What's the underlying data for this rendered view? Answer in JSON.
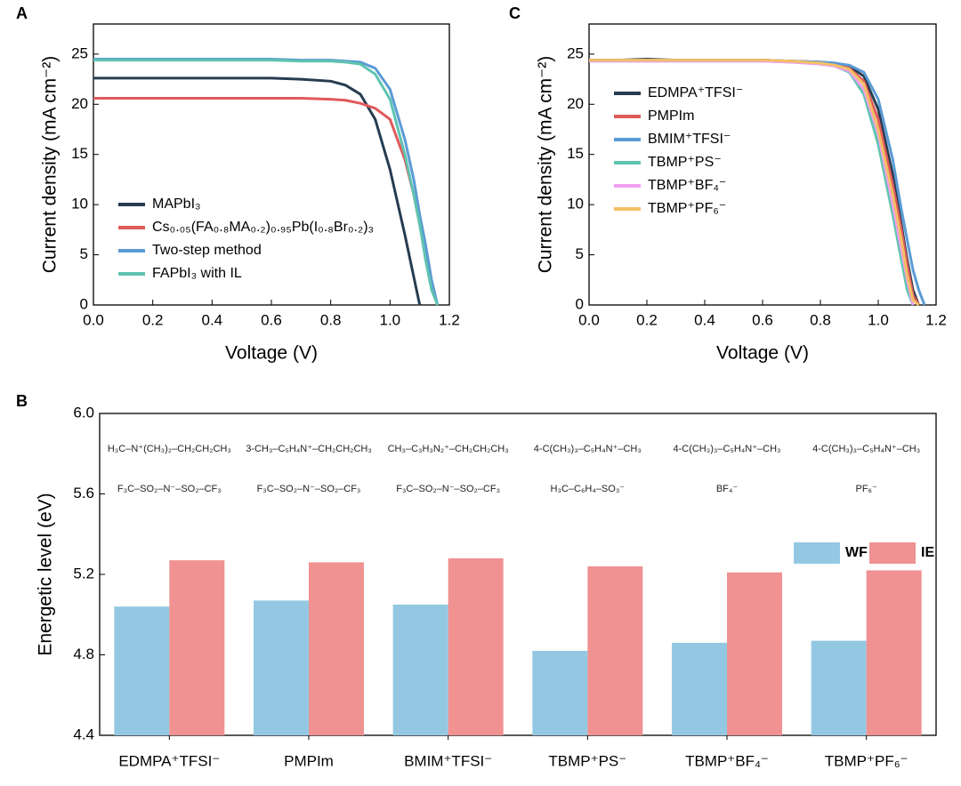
{
  "chart_data": [
    {
      "type": "line",
      "panel": "A",
      "xlabel": "Voltage (V)",
      "ylabel": "Current density (mA cm⁻²)",
      "x": [
        0,
        0.1,
        0.2,
        0.3,
        0.4,
        0.5,
        0.6,
        0.7,
        0.8,
        0.85,
        0.9,
        0.95,
        1.0,
        1.05,
        1.08,
        1.1,
        1.12,
        1.14,
        1.16
      ],
      "series": [
        {
          "name": "MAPbI₃",
          "color": "#263c50",
          "values": [
            22.6,
            22.6,
            22.6,
            22.6,
            22.6,
            22.6,
            22.6,
            22.5,
            22.3,
            21.9,
            21.0,
            18.5,
            13.5,
            7.0,
            2.8,
            0,
            null,
            null,
            null
          ]
        },
        {
          "name": "Cs₀.₀₅(FA₀.₈MA₀.₂)₀.₉₅Pb(I₀.₈Br₀.₂)₃",
          "color": "#e05a5a",
          "values": [
            20.6,
            20.6,
            20.6,
            20.6,
            20.6,
            20.6,
            20.6,
            20.6,
            20.5,
            20.4,
            20.1,
            19.6,
            18.5,
            14.5,
            11.0,
            8.0,
            5.0,
            2.0,
            0
          ]
        },
        {
          "name": "Two-step method",
          "color": "#5b9bd5",
          "values": [
            24.5,
            24.5,
            24.5,
            24.5,
            24.5,
            24.5,
            24.5,
            24.4,
            24.4,
            24.3,
            24.2,
            23.6,
            21.5,
            16.5,
            12.5,
            9.0,
            6.0,
            2.5,
            0
          ]
        },
        {
          "name": "FAPbI₃ with IL",
          "color": "#5ec4b0",
          "values": [
            24.4,
            24.4,
            24.4,
            24.4,
            24.4,
            24.4,
            24.4,
            24.3,
            24.3,
            24.2,
            24.0,
            23.0,
            20.5,
            15.0,
            11.0,
            8.0,
            4.5,
            1.5,
            0
          ]
        }
      ],
      "xlim": [
        0,
        1.2
      ],
      "xticks": [
        {
          "value": 0,
          "label": "0.0"
        },
        0.2,
        0.4,
        0.6,
        0.8,
        {
          "value": 1,
          "label": "1.0"
        },
        1.2
      ],
      "ylim": [
        0,
        28
      ],
      "yticks": [
        0,
        5,
        10,
        15,
        20,
        25
      ],
      "legend_position": "lower left"
    },
    {
      "type": "line",
      "panel": "C",
      "xlabel": "Voltage (V)",
      "ylabel": "Current density (mA cm⁻²)",
      "x": [
        0,
        0.1,
        0.2,
        0.3,
        0.4,
        0.5,
        0.6,
        0.7,
        0.8,
        0.85,
        0.9,
        0.95,
        1.0,
        1.05,
        1.08,
        1.1,
        1.12,
        1.14,
        1.16
      ],
      "series": [
        {
          "name": "EDMPA⁺TFSI⁻",
          "color": "#263c50",
          "values": [
            24.4,
            24.4,
            24.5,
            24.4,
            24.4,
            24.4,
            24.4,
            24.3,
            24.2,
            24.1,
            23.8,
            22.8,
            19.5,
            13.0,
            8.0,
            4.5,
            1.5,
            0,
            null
          ]
        },
        {
          "name": "PMPIm",
          "color": "#e05a5a",
          "values": [
            24.4,
            24.4,
            24.4,
            24.4,
            24.4,
            24.4,
            24.4,
            24.3,
            24.2,
            24.0,
            23.6,
            22.3,
            18.5,
            12.0,
            7.5,
            4.0,
            1.0,
            0,
            null
          ]
        },
        {
          "name": "BMIM⁺TFSI⁻",
          "color": "#5b9bd5",
          "values": [
            24.4,
            24.4,
            24.4,
            24.4,
            24.4,
            24.4,
            24.4,
            24.3,
            24.2,
            24.1,
            23.9,
            23.2,
            20.5,
            14.5,
            9.5,
            6.5,
            3.5,
            1.5,
            0
          ]
        },
        {
          "name": "TBMP⁺PS⁻",
          "color": "#5ec4b0",
          "values": [
            24.3,
            24.3,
            24.3,
            24.3,
            24.3,
            24.3,
            24.3,
            24.2,
            24.0,
            23.8,
            23.2,
            21.0,
            16.0,
            9.0,
            4.5,
            1.5,
            0,
            null,
            null
          ]
        },
        {
          "name": "TBMP⁺BF₄⁻",
          "color": "#f29ef0",
          "values": [
            24.3,
            24.3,
            24.3,
            24.3,
            24.3,
            24.3,
            24.3,
            24.2,
            24.0,
            23.8,
            23.3,
            21.5,
            17.0,
            10.0,
            5.5,
            2.5,
            0,
            null,
            null
          ]
        },
        {
          "name": "TBMP⁺PF₆⁻",
          "color": "#f3c063",
          "values": [
            24.4,
            24.4,
            24.4,
            24.4,
            24.4,
            24.4,
            24.4,
            24.3,
            24.1,
            23.9,
            23.5,
            22.0,
            17.5,
            11.0,
            6.5,
            3.0,
            0.5,
            0,
            null
          ]
        }
      ],
      "xlim": [
        0,
        1.2
      ],
      "xticks": [
        {
          "value": 0,
          "label": "0.0"
        },
        0.2,
        0.4,
        0.6,
        0.8,
        {
          "value": 1,
          "label": "1.0"
        },
        1.2
      ],
      "ylim": [
        0,
        28
      ],
      "yticks": [
        0,
        5,
        10,
        15,
        20,
        25
      ],
      "legend_position": "upper left"
    },
    {
      "type": "bar",
      "panel": "B",
      "ylabel": "Energetic level (eV)",
      "categories": [
        "EDMPA⁺TFSI⁻",
        "PMPIm",
        "BMIM⁺TFSI⁻",
        "TBMP⁺PS⁻",
        "TBMP⁺BF₄⁻",
        "TBMP⁺PF₆⁻"
      ],
      "series": [
        {
          "name": "WF",
          "color": "#94c8e2",
          "values": [
            5.04,
            5.07,
            5.05,
            4.82,
            4.86,
            4.87
          ]
        },
        {
          "name": "IE",
          "color": "#f09192",
          "values": [
            5.27,
            5.26,
            5.28,
            5.24,
            5.21,
            5.22
          ]
        }
      ],
      "ylim": [
        4.4,
        6.0
      ],
      "yticks": [
        4.4,
        4.8,
        5.2,
        5.6,
        {
          "value": 6,
          "label": "6.0"
        }
      ],
      "legend_position": "upper right",
      "structures": [
        [
          "H₃C–N⁺(CH₃)₂–CH₂CH₂CH₃",
          "F₃C–SO₂–N⁻–SO₂–CF₃"
        ],
        [
          "3-CH₃–C₅H₄N⁺–CH₂CH₂CH₃",
          "F₃C–SO₂–N⁻–SO₂–CF₃"
        ],
        [
          "CH₃–C₃H₃N₂⁺–CH₂CH₂CH₃",
          "F₃C–SO₂–N⁻–SO₂–CF₃"
        ],
        [
          "4-C(CH₃)₃–C₅H₄N⁺–CH₃",
          "H₃C–C₆H₄–SO₃⁻"
        ],
        [
          "4-C(CH₃)₃–C₅H₄N⁺–CH₃",
          "BF₄⁻"
        ],
        [
          "4-C(CH₃)₃–C₅H₄N⁺–CH₃",
          "PF₆⁻"
        ]
      ]
    }
  ]
}
